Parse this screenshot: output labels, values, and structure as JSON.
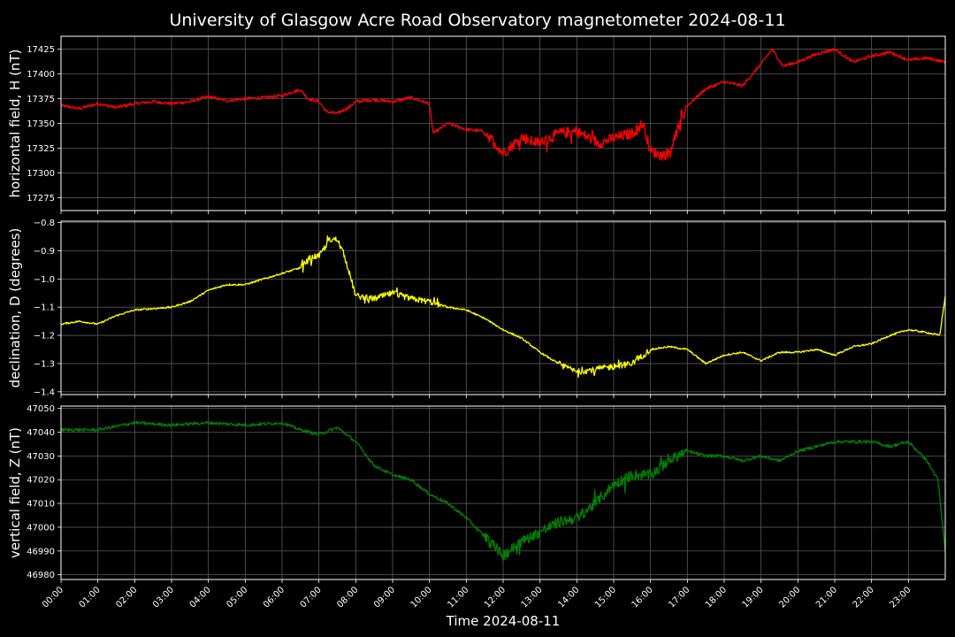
{
  "chart_data": {
    "type": "line",
    "title": "University of Glasgow Acre Road Observatory magnetometer 2024-08-11",
    "xlabel": "Time 2024-08-11",
    "x_ticks": [
      "00:00",
      "01:00",
      "02:00",
      "03:00",
      "04:00",
      "05:00",
      "06:00",
      "07:00",
      "08:00",
      "09:00",
      "10:00",
      "11:00",
      "12:00",
      "13:00",
      "14:00",
      "15:00",
      "16:00",
      "17:00",
      "18:00",
      "19:00",
      "20:00",
      "21:00",
      "22:00",
      "23:00"
    ],
    "xlim_hours": [
      0,
      24
    ],
    "grid": true,
    "panels": [
      {
        "ylabel": "horizontal field, H (nT)",
        "color": "#ff0000",
        "ylim": [
          17262,
          17438
        ],
        "yticks": [
          17275,
          17300,
          17325,
          17350,
          17375,
          17400,
          17425
        ],
        "points": [
          [
            0,
            17368
          ],
          [
            0.5,
            17365
          ],
          [
            1,
            17370
          ],
          [
            1.5,
            17366
          ],
          [
            2,
            17370
          ],
          [
            2.5,
            17372
          ],
          [
            3,
            17370
          ],
          [
            3.5,
            17372
          ],
          [
            4,
            17377
          ],
          [
            4.5,
            17373
          ],
          [
            5,
            17375
          ],
          [
            5.5,
            17376
          ],
          [
            6,
            17378
          ],
          [
            6.3,
            17382
          ],
          [
            6.5,
            17384
          ],
          [
            6.7,
            17375
          ],
          [
            7,
            17372
          ],
          [
            7.2,
            17362
          ],
          [
            7.5,
            17360
          ],
          [
            7.8,
            17366
          ],
          [
            8,
            17372
          ],
          [
            8.5,
            17374
          ],
          [
            9,
            17372
          ],
          [
            9.5,
            17376
          ],
          [
            10,
            17370
          ],
          [
            10.1,
            17340
          ],
          [
            10.5,
            17350
          ],
          [
            11,
            17344
          ],
          [
            11.5,
            17342
          ],
          [
            12,
            17320
          ],
          [
            12.5,
            17336
          ],
          [
            13,
            17330
          ],
          [
            13.5,
            17340
          ],
          [
            14,
            17342
          ],
          [
            14.3,
            17336
          ],
          [
            14.6,
            17330
          ],
          [
            15,
            17335
          ],
          [
            15.5,
            17340
          ],
          [
            15.8,
            17350
          ],
          [
            16,
            17322
          ],
          [
            16.3,
            17318
          ],
          [
            16.5,
            17320
          ],
          [
            16.7,
            17340
          ],
          [
            17,
            17368
          ],
          [
            17.5,
            17385
          ],
          [
            18,
            17392
          ],
          [
            18.5,
            17388
          ],
          [
            19,
            17410
          ],
          [
            19.3,
            17425
          ],
          [
            19.6,
            17408
          ],
          [
            20,
            17412
          ],
          [
            20.5,
            17420
          ],
          [
            21,
            17425
          ],
          [
            21.5,
            17412
          ],
          [
            22,
            17418
          ],
          [
            22.5,
            17422
          ],
          [
            23,
            17414
          ],
          [
            23.5,
            17416
          ],
          [
            24,
            17412
          ]
        ]
      },
      {
        "ylabel": "declination, D (degrees)",
        "color": "#ffff00",
        "ylim": [
          -1.41,
          -0.795
        ],
        "yticks": [
          -1.4,
          -1.3,
          -1.2,
          -1.1,
          -1.0,
          -0.9,
          -0.8
        ],
        "points": [
          [
            0,
            -1.16
          ],
          [
            0.5,
            -1.15
          ],
          [
            1,
            -1.16
          ],
          [
            1.5,
            -1.13
          ],
          [
            2,
            -1.11
          ],
          [
            3,
            -1.1
          ],
          [
            3.5,
            -1.08
          ],
          [
            4,
            -1.04
          ],
          [
            4.5,
            -1.02
          ],
          [
            5,
            -1.02
          ],
          [
            5.5,
            -1.0
          ],
          [
            6,
            -0.98
          ],
          [
            6.5,
            -0.96
          ],
          [
            6.8,
            -0.92
          ],
          [
            7,
            -0.92
          ],
          [
            7.3,
            -0.86
          ],
          [
            7.5,
            -0.86
          ],
          [
            7.7,
            -0.92
          ],
          [
            8,
            -1.06
          ],
          [
            8.5,
            -1.07
          ],
          [
            9,
            -1.05
          ],
          [
            9.5,
            -1.07
          ],
          [
            10,
            -1.08
          ],
          [
            10.5,
            -1.1
          ],
          [
            11,
            -1.11
          ],
          [
            11.5,
            -1.14
          ],
          [
            12,
            -1.18
          ],
          [
            12.5,
            -1.21
          ],
          [
            13,
            -1.26
          ],
          [
            13.5,
            -1.3
          ],
          [
            14,
            -1.33
          ],
          [
            14.5,
            -1.32
          ],
          [
            15,
            -1.31
          ],
          [
            15.5,
            -1.3
          ],
          [
            16,
            -1.25
          ],
          [
            16.5,
            -1.24
          ],
          [
            17,
            -1.25
          ],
          [
            17.5,
            -1.3
          ],
          [
            18,
            -1.27
          ],
          [
            18.5,
            -1.26
          ],
          [
            19,
            -1.29
          ],
          [
            19.5,
            -1.26
          ],
          [
            20,
            -1.26
          ],
          [
            20.5,
            -1.25
          ],
          [
            21,
            -1.27
          ],
          [
            21.5,
            -1.24
          ],
          [
            22,
            -1.23
          ],
          [
            22.5,
            -1.2
          ],
          [
            23,
            -1.18
          ],
          [
            23.5,
            -1.19
          ],
          [
            23.85,
            -1.2
          ],
          [
            24,
            -1.06
          ]
        ]
      },
      {
        "ylabel": "vertical field, Z (nT)",
        "color": "#008000",
        "ylim": [
          46978,
          47051
        ],
        "yticks": [
          46980,
          46990,
          47000,
          47010,
          47020,
          47030,
          47040,
          47050
        ],
        "points": [
          [
            0,
            47041
          ],
          [
            1,
            47041
          ],
          [
            2,
            47044
          ],
          [
            3,
            47043
          ],
          [
            4,
            47044
          ],
          [
            5,
            47043
          ],
          [
            6,
            47044
          ],
          [
            6.5,
            47041
          ],
          [
            7,
            47039
          ],
          [
            7.5,
            47042
          ],
          [
            8,
            47036
          ],
          [
            8.5,
            47026
          ],
          [
            9,
            47022
          ],
          [
            9.5,
            47020
          ],
          [
            10,
            47014
          ],
          [
            10.5,
            47010
          ],
          [
            11,
            47004
          ],
          [
            11.5,
            46996
          ],
          [
            12,
            46988
          ],
          [
            12.5,
            46994
          ],
          [
            13,
            46998
          ],
          [
            13.5,
            47002
          ],
          [
            14,
            47004
          ],
          [
            14.5,
            47010
          ],
          [
            15,
            47018
          ],
          [
            15.5,
            47022
          ],
          [
            16,
            47022
          ],
          [
            16.5,
            47028
          ],
          [
            17,
            47032
          ],
          [
            17.5,
            47030
          ],
          [
            18,
            47030
          ],
          [
            18.5,
            47028
          ],
          [
            19,
            47030
          ],
          [
            19.5,
            47028
          ],
          [
            20,
            47032
          ],
          [
            20.5,
            47034
          ],
          [
            21,
            47036
          ],
          [
            21.5,
            47036
          ],
          [
            22,
            47036
          ],
          [
            22.5,
            47034
          ],
          [
            23,
            47036
          ],
          [
            23.5,
            47028
          ],
          [
            23.8,
            47020
          ],
          [
            24,
            46990
          ]
        ]
      }
    ]
  }
}
